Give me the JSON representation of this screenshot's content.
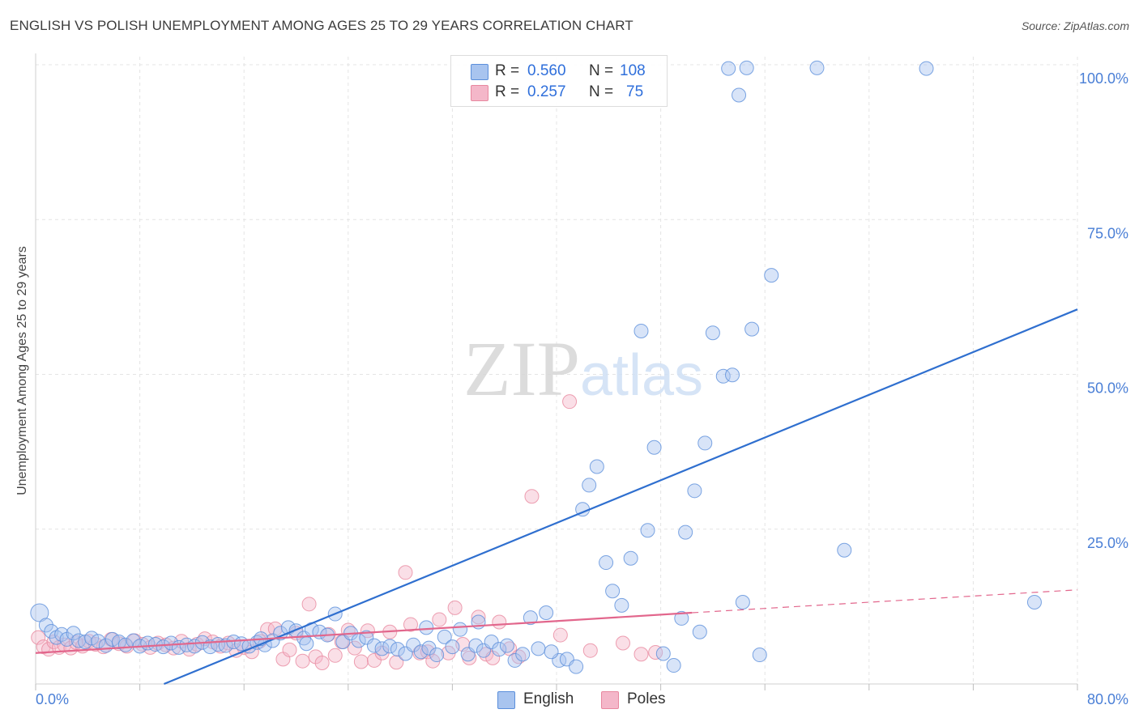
{
  "chart_data": {
    "type": "scatter",
    "title": "ENGLISH VS POLISH UNEMPLOYMENT AMONG AGES 25 TO 29 YEARS CORRELATION CHART",
    "source": "Source: ZipAtlas.com",
    "xlabel": "",
    "ylabel": "Unemployment Among Ages 25 to 29 years",
    "xlim": [
      0,
      80
    ],
    "ylim": [
      0,
      100
    ],
    "x_tick_labels": [
      "0.0%",
      "80.0%"
    ],
    "y_ticks": [
      25,
      50,
      75,
      100
    ],
    "y_tick_labels": [
      "25.0%",
      "50.0%",
      "75.0%",
      "100.0%"
    ],
    "grid": true,
    "watermark": "ZIPatlas",
    "stats": [
      {
        "r_label": "R =",
        "r_value": "0.560",
        "n_label": "N =",
        "n_value": "108",
        "color": "#a8c4ef"
      },
      {
        "r_label": "R =",
        "r_value": "0.257",
        "n_label": "N =",
        "n_value": "75",
        "color": "#f4b7c9"
      }
    ],
    "series": [
      {
        "name": "English",
        "color": "#a8c4ef",
        "stroke": "#5b8fdb",
        "trend": {
          "x1": 0,
          "y1": -8.5,
          "x2": 80,
          "y2": 60.5,
          "color": "#2f6fcf",
          "dashed_from": null
        },
        "points": [
          [
            0.3,
            11.5
          ],
          [
            0.8,
            9.5
          ],
          [
            1.2,
            8.5
          ],
          [
            1.6,
            7.5
          ],
          [
            2.0,
            8.0
          ],
          [
            2.4,
            7.2
          ],
          [
            2.9,
            8.2
          ],
          [
            3.3,
            7.0
          ],
          [
            3.8,
            6.8
          ],
          [
            4.3,
            7.4
          ],
          [
            4.8,
            6.9
          ],
          [
            5.4,
            6.2
          ],
          [
            5.9,
            7.2
          ],
          [
            6.4,
            6.8
          ],
          [
            6.9,
            6.3
          ],
          [
            7.5,
            7.0
          ],
          [
            8.0,
            6.1
          ],
          [
            8.6,
            6.6
          ],
          [
            9.2,
            6.4
          ],
          [
            9.8,
            6.0
          ],
          [
            10.4,
            6.6
          ],
          [
            11.0,
            5.9
          ],
          [
            11.6,
            6.3
          ],
          [
            12.2,
            6.1
          ],
          [
            12.8,
            6.7
          ],
          [
            13.4,
            6.0
          ],
          [
            14.0,
            6.4
          ],
          [
            14.6,
            6.2
          ],
          [
            15.2,
            6.8
          ],
          [
            15.8,
            6.5
          ],
          [
            16.4,
            6.1
          ],
          [
            17.0,
            6.7
          ],
          [
            17.6,
            6.3
          ],
          [
            18.2,
            7.0
          ],
          [
            18.8,
            8.2
          ],
          [
            19.4,
            9.1
          ],
          [
            20.0,
            8.6
          ],
          [
            20.6,
            7.4
          ],
          [
            21.2,
            8.8
          ],
          [
            21.8,
            8.4
          ],
          [
            22.4,
            7.9
          ],
          [
            23.0,
            11.3
          ],
          [
            23.6,
            6.8
          ],
          [
            24.2,
            8.2
          ],
          [
            24.8,
            7.0
          ],
          [
            25.4,
            7.5
          ],
          [
            26.0,
            6.2
          ],
          [
            26.6,
            5.7
          ],
          [
            27.2,
            6.1
          ],
          [
            27.8,
            5.6
          ],
          [
            28.4,
            4.9
          ],
          [
            29.0,
            6.3
          ],
          [
            29.6,
            5.2
          ],
          [
            30.2,
            5.8
          ],
          [
            30.8,
            4.7
          ],
          [
            31.4,
            7.6
          ],
          [
            32.0,
            6.0
          ],
          [
            32.6,
            8.8
          ],
          [
            33.2,
            4.8
          ],
          [
            33.8,
            6.2
          ],
          [
            34.4,
            5.4
          ],
          [
            35.0,
            6.8
          ],
          [
            35.6,
            5.6
          ],
          [
            36.2,
            6.2
          ],
          [
            36.8,
            3.8
          ],
          [
            37.4,
            4.8
          ],
          [
            38.0,
            10.7
          ],
          [
            38.6,
            5.7
          ],
          [
            39.2,
            11.5
          ],
          [
            40.2,
            3.8
          ],
          [
            40.8,
            4.0
          ],
          [
            41.5,
            2.8
          ],
          [
            42.0,
            28.2
          ],
          [
            42.5,
            32.1
          ],
          [
            43.1,
            35.1
          ],
          [
            43.8,
            19.6
          ],
          [
            44.3,
            15.0
          ],
          [
            45.0,
            12.7
          ],
          [
            45.7,
            20.3
          ],
          [
            46.5,
            57.0
          ],
          [
            47.0,
            24.8
          ],
          [
            47.5,
            38.2
          ],
          [
            48.2,
            4.9
          ],
          [
            49.0,
            3.0
          ],
          [
            49.6,
            10.6
          ],
          [
            49.9,
            24.5
          ],
          [
            50.6,
            31.2
          ],
          [
            51.0,
            8.4
          ],
          [
            51.4,
            38.9
          ],
          [
            52.0,
            56.7
          ],
          [
            52.8,
            49.7
          ],
          [
            53.2,
            99.4
          ],
          [
            53.5,
            49.9
          ],
          [
            54.0,
            95.1
          ],
          [
            54.3,
            13.2
          ],
          [
            54.6,
            99.5
          ],
          [
            55.0,
            57.3
          ],
          [
            55.6,
            4.7
          ],
          [
            56.5,
            66.0
          ],
          [
            60.0,
            99.5
          ],
          [
            62.1,
            21.6
          ],
          [
            68.4,
            99.4
          ],
          [
            76.7,
            13.2
          ],
          [
            39.6,
            5.2
          ],
          [
            34.0,
            10.0
          ],
          [
            30.0,
            9.1
          ],
          [
            20.8,
            6.5
          ],
          [
            17.3,
            7.3
          ]
        ]
      },
      {
        "name": "Poles",
        "color": "#f4b7c9",
        "stroke": "#e8889f",
        "trend": {
          "x1": 0,
          "y1": 5.0,
          "x2": 50.4,
          "y2": 11.5,
          "color": "#e2668c",
          "dashed_from": 50.4,
          "dash_x2": 80,
          "dash_y2": 15.2
        },
        "points": [
          [
            0.2,
            7.5
          ],
          [
            0.6,
            6.0
          ],
          [
            1.0,
            5.6
          ],
          [
            1.4,
            6.8
          ],
          [
            1.8,
            5.9
          ],
          [
            2.2,
            6.3
          ],
          [
            2.7,
            5.8
          ],
          [
            3.1,
            6.7
          ],
          [
            3.6,
            6.1
          ],
          [
            4.1,
            6.9
          ],
          [
            4.6,
            6.4
          ],
          [
            5.2,
            6.0
          ],
          [
            5.8,
            7.2
          ],
          [
            6.4,
            6.5
          ],
          [
            7.0,
            6.1
          ],
          [
            7.6,
            7.0
          ],
          [
            8.2,
            6.4
          ],
          [
            8.8,
            5.9
          ],
          [
            9.4,
            6.6
          ],
          [
            10.0,
            6.3
          ],
          [
            10.6,
            5.8
          ],
          [
            11.2,
            6.9
          ],
          [
            11.8,
            5.6
          ],
          [
            12.4,
            6.4
          ],
          [
            13.0,
            7.3
          ],
          [
            13.6,
            6.8
          ],
          [
            14.2,
            6.1
          ],
          [
            14.8,
            6.6
          ],
          [
            15.4,
            5.4
          ],
          [
            16.0,
            5.9
          ],
          [
            16.6,
            5.2
          ],
          [
            17.2,
            6.9
          ],
          [
            17.8,
            8.8
          ],
          [
            18.4,
            8.9
          ],
          [
            19.0,
            4.0
          ],
          [
            19.5,
            5.5
          ],
          [
            20.0,
            8.2
          ],
          [
            20.5,
            3.7
          ],
          [
            21.0,
            12.9
          ],
          [
            21.5,
            4.4
          ],
          [
            22.0,
            3.4
          ],
          [
            22.5,
            8.0
          ],
          [
            23.0,
            4.6
          ],
          [
            23.5,
            6.8
          ],
          [
            24.0,
            8.7
          ],
          [
            24.5,
            5.8
          ],
          [
            25.0,
            3.6
          ],
          [
            25.5,
            8.6
          ],
          [
            26.0,
            3.8
          ],
          [
            26.6,
            5.0
          ],
          [
            27.2,
            8.4
          ],
          [
            27.7,
            3.5
          ],
          [
            28.4,
            18.0
          ],
          [
            28.8,
            9.6
          ],
          [
            29.5,
            5.0
          ],
          [
            30.1,
            5.2
          ],
          [
            30.5,
            3.7
          ],
          [
            31.0,
            10.4
          ],
          [
            31.7,
            5.0
          ],
          [
            32.2,
            12.3
          ],
          [
            32.8,
            6.4
          ],
          [
            33.3,
            4.2
          ],
          [
            34.0,
            10.8
          ],
          [
            34.6,
            4.8
          ],
          [
            35.1,
            4.2
          ],
          [
            35.6,
            10.0
          ],
          [
            36.4,
            5.7
          ],
          [
            37.1,
            4.4
          ],
          [
            38.1,
            30.3
          ],
          [
            40.3,
            7.9
          ],
          [
            41.0,
            45.6
          ],
          [
            42.6,
            5.4
          ],
          [
            45.1,
            6.6
          ],
          [
            46.5,
            4.8
          ],
          [
            47.6,
            5.1
          ]
        ]
      }
    ]
  }
}
